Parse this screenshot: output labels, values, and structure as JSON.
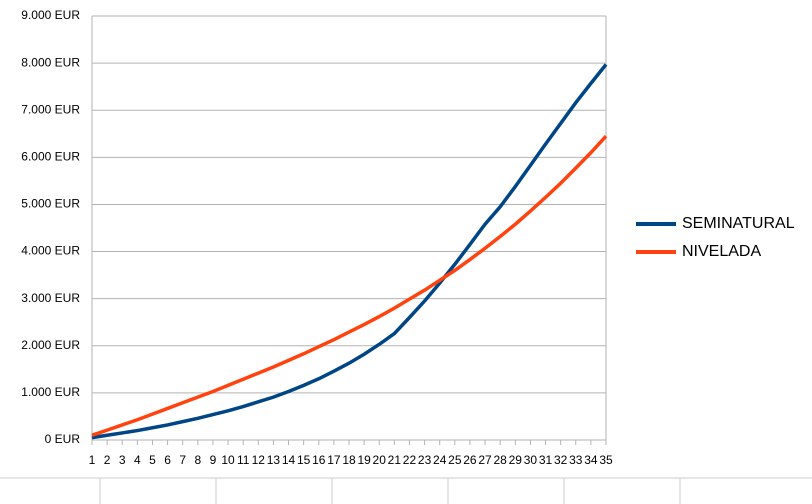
{
  "chart_data": {
    "type": "line",
    "categories": [
      1,
      2,
      3,
      4,
      5,
      6,
      7,
      8,
      9,
      10,
      11,
      12,
      13,
      14,
      15,
      16,
      17,
      18,
      19,
      20,
      21,
      22,
      23,
      24,
      25,
      26,
      27,
      28,
      29,
      30,
      31,
      32,
      33,
      34,
      35
    ],
    "series": [
      {
        "name": "SEMINATURAL",
        "color": "#004586",
        "values": [
          50,
          100,
          150,
          200,
          260,
          320,
          390,
          460,
          540,
          620,
          710,
          810,
          910,
          1030,
          1160,
          1300,
          1460,
          1630,
          1820,
          2030,
          2260,
          2600,
          2950,
          3330,
          3730,
          4150,
          4580,
          4950,
          5380,
          5830,
          6280,
          6720,
          7160,
          7570,
          7970
        ]
      },
      {
        "name": "NIVELADA",
        "color": "#ff420e",
        "values": [
          100,
          210,
          320,
          430,
          550,
          670,
          790,
          910,
          1030,
          1160,
          1290,
          1420,
          1550,
          1690,
          1830,
          1980,
          2130,
          2290,
          2450,
          2620,
          2800,
          2990,
          3180,
          3390,
          3600,
          3830,
          4070,
          4320,
          4580,
          4860,
          5150,
          5450,
          5770,
          6100,
          6450
        ]
      }
    ],
    "ylim": [
      0,
      9000
    ],
    "yticks": [
      {
        "value": 0,
        "label": "0 EUR"
      },
      {
        "value": 1000,
        "label": "1.000 EUR"
      },
      {
        "value": 2000,
        "label": "2.000 EUR"
      },
      {
        "value": 3000,
        "label": "3.000 EUR"
      },
      {
        "value": 4000,
        "label": "4.000 EUR"
      },
      {
        "value": 5000,
        "label": "5.000 EUR"
      },
      {
        "value": 6000,
        "label": "6.000 EUR"
      },
      {
        "value": 7000,
        "label": "7.000 EUR"
      },
      {
        "value": 8000,
        "label": "8.000 EUR"
      },
      {
        "value": 9000,
        "label": "9.000 EUR"
      }
    ],
    "grid": true,
    "legend": "right"
  }
}
